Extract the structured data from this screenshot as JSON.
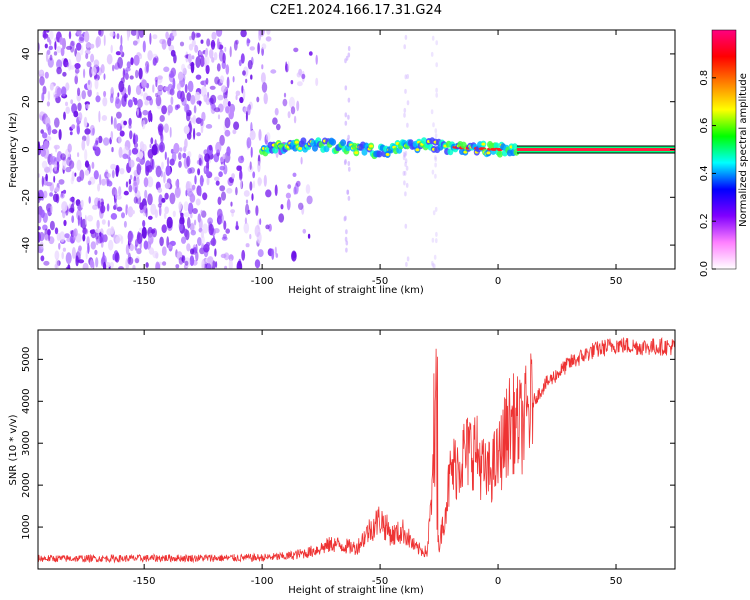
{
  "title": "C2E1.2024.166.17.31.G24",
  "chart_data": [
    {
      "type": "heatmap",
      "xlabel": "Height of straight line (km)",
      "ylabel": "Frequency (Hz)",
      "xlim": [
        -195,
        75
      ],
      "ylim": [
        -50,
        50
      ],
      "xticks": [
        -150,
        -100,
        -50,
        0,
        50
      ],
      "yticks": [
        -40,
        -20,
        0,
        20,
        40
      ],
      "colorbar": {
        "label": "Normalized spectral amplitude",
        "range": [
          0,
          1
        ],
        "ticks": [
          "0.0",
          "0.2",
          "0.4",
          "0.6",
          "0.8"
        ],
        "stops": [
          "#ffffff",
          "#ff80ff",
          "#8000ff",
          "#0000ff",
          "#00ffff",
          "#00ff00",
          "#ffff00",
          "#ff8000",
          "#ff0000",
          "#ff0080"
        ]
      },
      "signal_track": [
        {
          "x": -100,
          "y": 0.5
        },
        {
          "x": -90,
          "y": 1.0
        },
        {
          "x": -80,
          "y": 2.0
        },
        {
          "x": -70,
          "y": 1.5
        },
        {
          "x": -60,
          "y": 0.5
        },
        {
          "x": -50,
          "y": -1.0
        },
        {
          "x": -40,
          "y": 1.5
        },
        {
          "x": -30,
          "y": 2.0
        },
        {
          "x": -20,
          "y": 1.0
        },
        {
          "x": -10,
          "y": 0.5
        },
        {
          "x": 0,
          "y": 0.0
        },
        {
          "x": 10,
          "y": 0.0
        },
        {
          "x": 75,
          "y": 0.0
        }
      ],
      "noise_region": {
        "xmin": -195,
        "xmax": -85
      },
      "clean_tone_from_x": 8
    },
    {
      "type": "line",
      "xlabel": "Height of straight line (km)",
      "ylabel": "SNR (10 * v/v)",
      "xlim": [
        -195,
        75
      ],
      "ylim": [
        0,
        5700
      ],
      "xticks": [
        -150,
        -100,
        -50,
        0,
        50
      ],
      "yticks": [
        1000,
        2000,
        3000,
        4000,
        5000
      ],
      "color": "#ee3333",
      "series": [
        {
          "x": [
            -195,
            -180,
            -160,
            -140,
            -120,
            -100,
            -90,
            -80,
            -70,
            -60,
            -55,
            -50,
            -45,
            -40,
            -35,
            -30,
            -27,
            -25,
            -20,
            -15,
            -10,
            -5,
            0,
            5,
            10,
            15,
            20,
            30,
            40,
            50,
            60,
            75
          ],
          "values": [
            250,
            250,
            250,
            260,
            260,
            270,
            300,
            400,
            600,
            500,
            900,
            1200,
            800,
            900,
            500,
            400,
            2500,
            500,
            2300,
            2700,
            2900,
            2200,
            2600,
            3500,
            3400,
            4000,
            4400,
            4900,
            5200,
            5350,
            5300,
            5300
          ]
        }
      ]
    }
  ]
}
